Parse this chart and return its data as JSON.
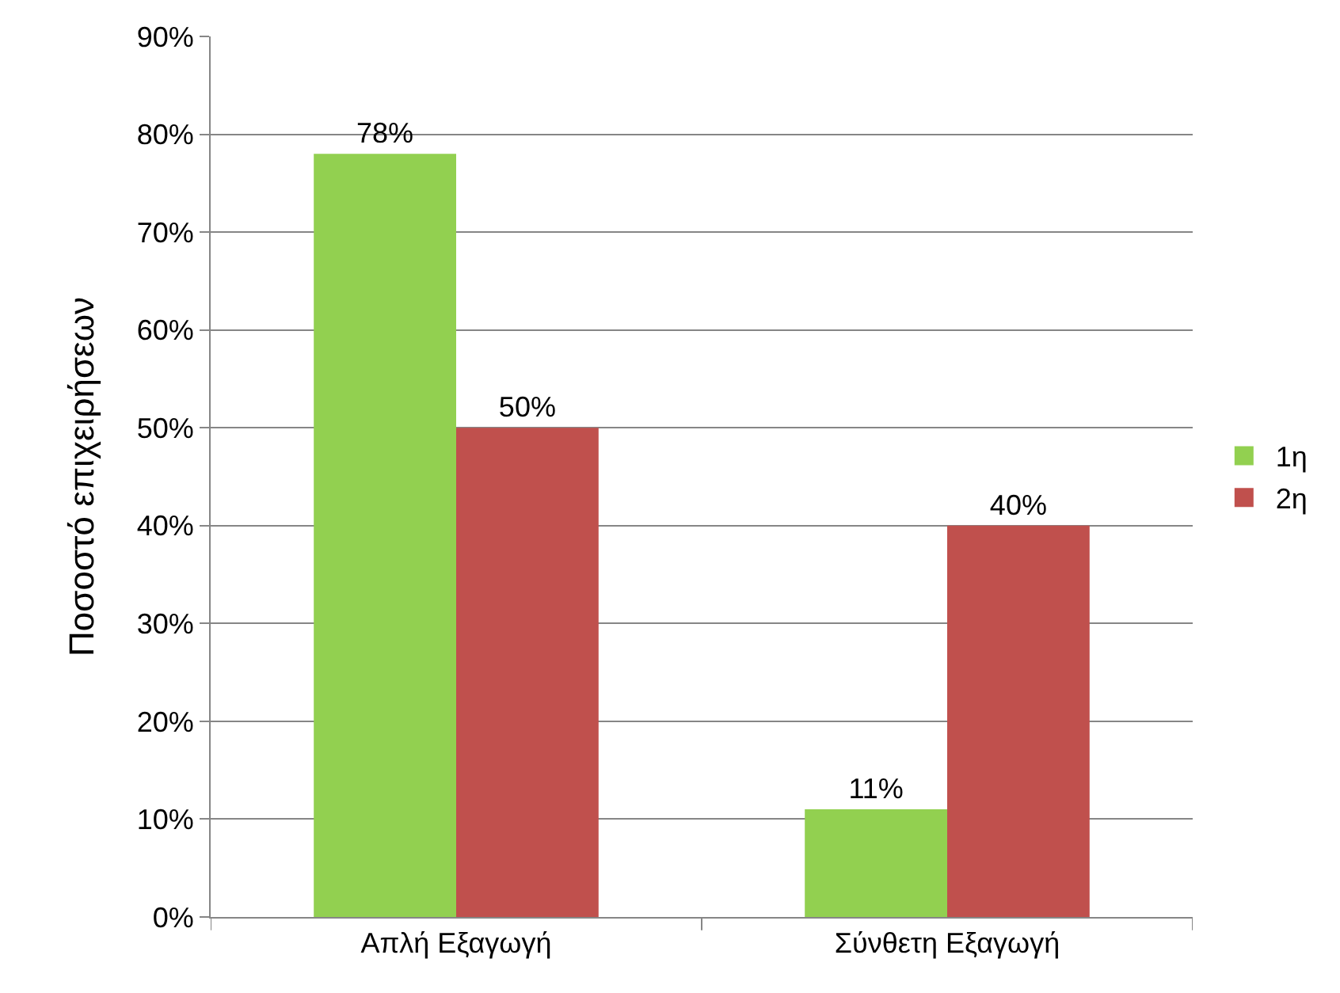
{
  "chart_data": {
    "type": "bar",
    "ylabel": "Ποσοστό επιχειρήσεων",
    "categories": [
      "Απλή Εξαγωγή",
      "Σύνθετη Εξαγωγή"
    ],
    "series": [
      {
        "name": "1η",
        "color": "#92d050",
        "values": [
          78,
          11
        ],
        "value_labels": [
          "78%",
          "11%"
        ]
      },
      {
        "name": "2η",
        "color": "#c0504d",
        "values": [
          50,
          40
        ],
        "value_labels": [
          "50%",
          "40%"
        ]
      }
    ],
    "ylim": [
      0,
      90
    ],
    "yticks": [
      {
        "value": 0,
        "label": "0%"
      },
      {
        "value": 10,
        "label": "10%"
      },
      {
        "value": 20,
        "label": "20%"
      },
      {
        "value": 30,
        "label": "30%"
      },
      {
        "value": 40,
        "label": "40%"
      },
      {
        "value": 50,
        "label": "50%"
      },
      {
        "value": 60,
        "label": "60%"
      },
      {
        "value": 70,
        "label": "70%"
      },
      {
        "value": 80,
        "label": "80%"
      },
      {
        "value": 90,
        "label": "90%"
      }
    ],
    "grid": "y",
    "legend": "right"
  }
}
